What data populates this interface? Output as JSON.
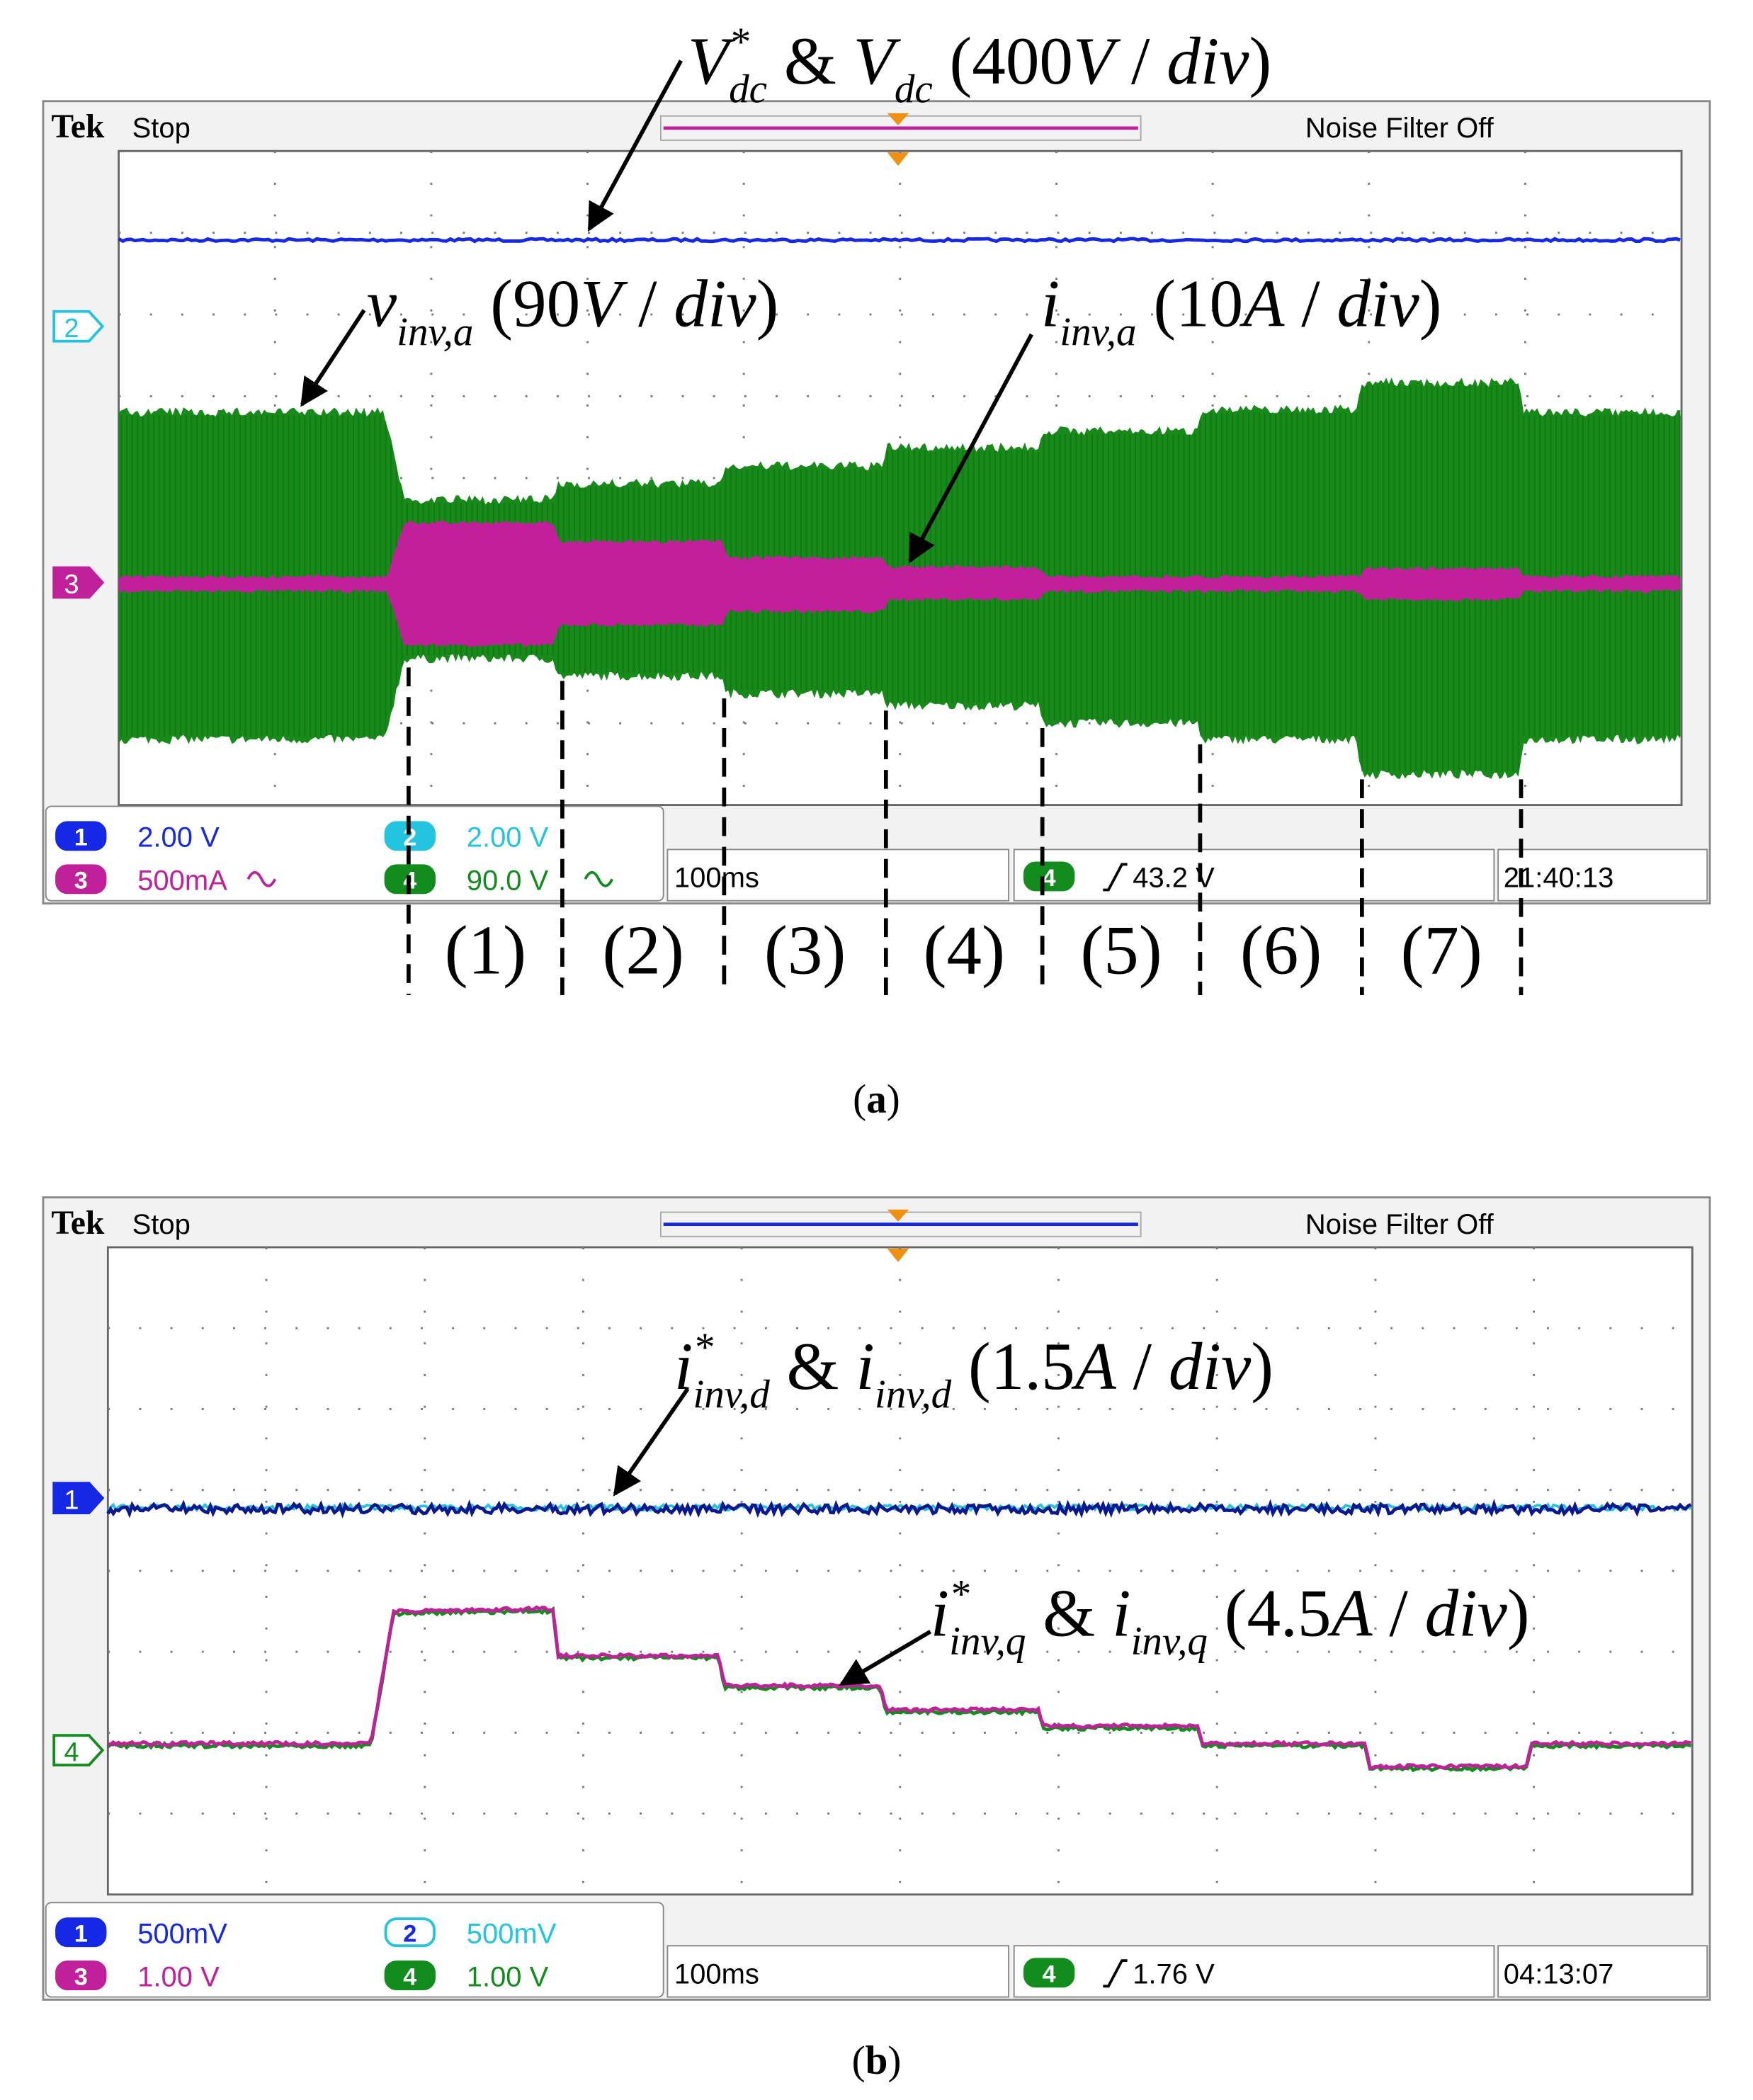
{
  "panels": [
    {
      "brand": "Tek",
      "status": "Stop",
      "noise_filter": "Noise Filter Off",
      "channel_markers": [
        "2",
        "3"
      ],
      "readouts": [
        {
          "channel": "1",
          "setting": "2.00 V"
        },
        {
          "channel": "2",
          "setting": "2.00 V"
        },
        {
          "channel": "3",
          "setting": "500mA"
        },
        {
          "channel": "4",
          "setting": "90.0 V"
        }
      ],
      "timebase": "100ms",
      "trigger": {
        "channel": "4",
        "level": "43.2 V"
      },
      "clock": "21:40:13",
      "annotations": [
        [
          "V",
          "*",
          "dc",
          " & ",
          "V",
          "dc",
          " (400",
          "V",
          " / ",
          "div",
          ")"
        ],
        [
          "v",
          "inv,a",
          " (90",
          "V",
          " / ",
          "div",
          ")"
        ],
        [
          "i",
          "inv,a",
          " (10",
          "A",
          " / ",
          "div",
          ")"
        ]
      ],
      "intervals": [
        "(1)",
        "(2)",
        "(3)",
        "(4)",
        "(5)",
        "(6)",
        "(7)"
      ],
      "caption": [
        "(",
        "a",
        ")"
      ]
    },
    {
      "brand": "Tek",
      "status": "Stop",
      "noise_filter": "Noise Filter Off",
      "channel_markers": [
        "1",
        "4"
      ],
      "readouts": [
        {
          "channel": "1",
          "setting": "500mV"
        },
        {
          "channel": "2",
          "setting": "500mV"
        },
        {
          "channel": "3",
          "setting": "1.00 V"
        },
        {
          "channel": "4",
          "setting": "1.00 V"
        }
      ],
      "timebase": "100ms",
      "trigger": {
        "channel": "4",
        "level": "1.76 V"
      },
      "clock": "04:13:07",
      "annotations": [
        [
          "i",
          "*",
          "inv,d",
          " & ",
          "i",
          "inv,d",
          " (1.5",
          "A",
          " / ",
          "div",
          ")"
        ],
        [
          "i",
          "*",
          "inv,q",
          " & ",
          "i",
          "inv,q",
          " (4.5",
          "A",
          " / ",
          "div",
          ")"
        ]
      ],
      "intervals": [],
      "caption": [
        "(",
        "b",
        ")"
      ]
    }
  ]
}
